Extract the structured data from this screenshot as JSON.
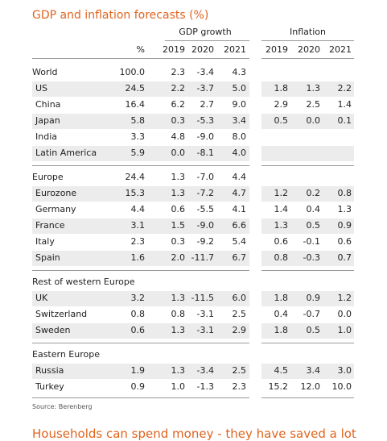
{
  "header": {
    "title": "GDP and inflation forecasts (%)",
    "gdp_heading": "GDP growth",
    "inflation_heading": "Inflation",
    "share_heading": "%",
    "gdp_years": [
      "2019",
      "2020",
      "2021"
    ],
    "inflation_years": [
      "2019",
      "2020",
      "2021"
    ]
  },
  "groups": [
    {
      "rows": [
        {
          "label": "World",
          "share": "100.0",
          "gdp": [
            "2.3",
            "-3.4",
            "4.3"
          ]
        },
        {
          "label": "US",
          "share": "24.5",
          "gdp": [
            "2.2",
            "-3.7",
            "5.0"
          ],
          "inflation": [
            "1.8",
            "1.3",
            "2.2"
          ]
        },
        {
          "label": "China",
          "share": "16.4",
          "gdp": [
            "6.2",
            "2.7",
            "9.0"
          ],
          "inflation": [
            "2.9",
            "2.5",
            "1.4"
          ]
        },
        {
          "label": "Japan",
          "share": "5.8",
          "gdp": [
            "0.3",
            "-5.3",
            "3.4"
          ],
          "inflation": [
            "0.5",
            "0.0",
            "0.1"
          ]
        },
        {
          "label": "India",
          "share": "3.3",
          "gdp": [
            "4.8",
            "-9.0",
            "8.0"
          ]
        },
        {
          "label": "Latin America",
          "share": "5.9",
          "gdp": [
            "0.0",
            "-8.1",
            "4.0"
          ]
        }
      ]
    },
    {
      "rows": [
        {
          "label": "Europe",
          "share": "24.4",
          "gdp": [
            "1.3",
            "-7.0",
            "4.4"
          ]
        },
        {
          "label": "Eurozone",
          "share": "15.3",
          "gdp": [
            "1.3",
            "-7.2",
            "4.7"
          ],
          "inflation": [
            "1.2",
            "0.2",
            "0.8"
          ]
        },
        {
          "label": "Germany",
          "share": "4.4",
          "gdp": [
            "0.6",
            "-5.5",
            "4.1"
          ],
          "inflation": [
            "1.4",
            "0.4",
            "1.3"
          ]
        },
        {
          "label": "France",
          "share": "3.1",
          "gdp": [
            "1.5",
            "-9.0",
            "6.6"
          ],
          "inflation": [
            "1.3",
            "0.5",
            "0.9"
          ]
        },
        {
          "label": "Italy",
          "share": "2.3",
          "gdp": [
            "0.3",
            "-9.2",
            "5.4"
          ],
          "inflation": [
            "0.6",
            "-0.1",
            "0.6"
          ]
        },
        {
          "label": "Spain",
          "share": "1.6",
          "gdp": [
            "2.0",
            "-11.7",
            "6.7"
          ],
          "inflation": [
            "0.8",
            "-0.3",
            "0.7"
          ]
        }
      ]
    },
    {
      "rows": [
        {
          "label": "Rest of western Europe"
        },
        {
          "label": "UK",
          "share": "3.2",
          "gdp": [
            "1.3",
            "-11.5",
            "6.0"
          ],
          "inflation": [
            "1.8",
            "0.9",
            "1.2"
          ]
        },
        {
          "label": "Switzerland",
          "share": "0.8",
          "gdp": [
            "0.8",
            "-3.1",
            "2.5"
          ],
          "inflation": [
            "0.4",
            "-0.7",
            "0.0"
          ]
        },
        {
          "label": "Sweden",
          "share": "0.6",
          "gdp": [
            "1.3",
            "-3.1",
            "2.9"
          ],
          "inflation": [
            "1.8",
            "0.5",
            "1.0"
          ]
        }
      ]
    },
    {
      "rows": [
        {
          "label": "Eastern Europe"
        },
        {
          "label": "Russia",
          "share": "1.9",
          "gdp": [
            "1.3",
            "-3.4",
            "2.5"
          ],
          "inflation": [
            "4.5",
            "3.4",
            "3.0"
          ]
        },
        {
          "label": "Turkey",
          "share": "0.9",
          "gdp": [
            "1.0",
            "-1.3",
            "2.3"
          ],
          "inflation": [
            "15.2",
            "12.0",
            "10.0"
          ]
        }
      ]
    }
  ],
  "source": "Source: Berenberg",
  "next_heading": "Households can spend money - they have saved a lot"
}
